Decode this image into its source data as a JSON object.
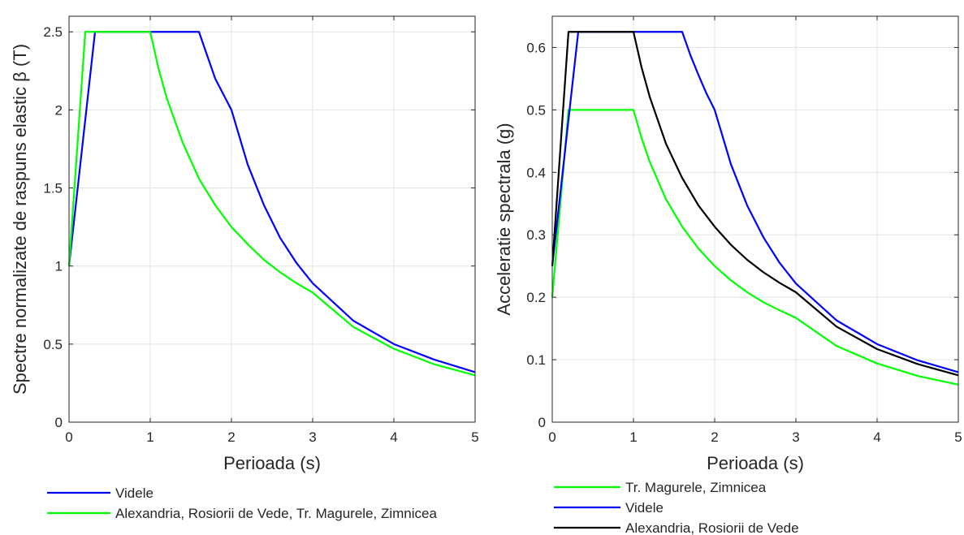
{
  "chart_data": [
    {
      "type": "line",
      "xlabel": "Perioada (s)",
      "ylabel": "Spectre normalizate de raspuns elastic β (T)",
      "xlim": [
        0,
        5
      ],
      "ylim": [
        0,
        2.6
      ],
      "xticks": [
        "0",
        "1",
        "2",
        "3",
        "4",
        "5"
      ],
      "yticks": [
        "0",
        "0.5",
        "1",
        "1.5",
        "2",
        "2.5"
      ],
      "grid": true,
      "legend_position": "below",
      "series": [
        {
          "name": "Videle",
          "color": "#0000ff",
          "x": [
            0,
            0.32,
            1.6,
            1.7,
            1.8,
            1.9,
            2.0,
            2.2,
            2.4,
            2.6,
            2.8,
            3.0,
            3.5,
            4.0,
            4.5,
            5.0
          ],
          "y": [
            1,
            2.5,
            2.5,
            2.35,
            2.2,
            2.1,
            2.0,
            1.65,
            1.39,
            1.18,
            1.02,
            0.89,
            0.65,
            0.5,
            0.4,
            0.32
          ]
        },
        {
          "name": "Alexandria, Rosiorii de Vede, Tr. Magurele, Zimnicea",
          "color": "#00ff00",
          "x": [
            0,
            0.2,
            1.0,
            1.1,
            1.2,
            1.4,
            1.6,
            1.8,
            2.0,
            2.2,
            2.4,
            2.6,
            2.8,
            3.0,
            3.5,
            4.0,
            4.5,
            5.0
          ],
          "y": [
            1,
            2.5,
            2.5,
            2.27,
            2.08,
            1.79,
            1.56,
            1.39,
            1.25,
            1.14,
            1.04,
            0.96,
            0.89,
            0.83,
            0.61,
            0.47,
            0.37,
            0.3
          ]
        }
      ]
    },
    {
      "type": "line",
      "xlabel": "Perioada (s)",
      "ylabel": "Acceleratie spectrala (g)",
      "xlim": [
        0,
        5
      ],
      "ylim": [
        0,
        0.65
      ],
      "xticks": [
        "0",
        "1",
        "2",
        "3",
        "4",
        "5"
      ],
      "yticks": [
        "0",
        "0.1",
        "0.2",
        "0.3",
        "0.4",
        "0.5",
        "0.6"
      ],
      "grid": true,
      "legend_position": "below",
      "series": [
        {
          "name": "Tr. Magurele, Zimnicea",
          "color": "#00ff00",
          "x": [
            0,
            0.2,
            1.0,
            1.1,
            1.2,
            1.4,
            1.6,
            1.8,
            2.0,
            2.2,
            2.4,
            2.6,
            2.8,
            3.0,
            3.5,
            4.0,
            4.5,
            5.0
          ],
          "y": [
            0.2,
            0.5,
            0.5,
            0.455,
            0.417,
            0.357,
            0.313,
            0.278,
            0.25,
            0.227,
            0.208,
            0.192,
            0.179,
            0.167,
            0.122,
            0.094,
            0.074,
            0.06
          ]
        },
        {
          "name": "Videle",
          "color": "#0000ff",
          "x": [
            0,
            0.32,
            1.6,
            1.7,
            1.8,
            1.9,
            2.0,
            2.2,
            2.4,
            2.6,
            2.8,
            3.0,
            3.5,
            4.0,
            4.5,
            5.0
          ],
          "y": [
            0.25,
            0.625,
            0.625,
            0.588,
            0.556,
            0.526,
            0.5,
            0.413,
            0.347,
            0.296,
            0.255,
            0.222,
            0.163,
            0.125,
            0.099,
            0.08
          ]
        },
        {
          "name": "Alexandria, Rosiorii de Vede",
          "color": "#000000",
          "x": [
            0,
            0.2,
            1.0,
            1.1,
            1.2,
            1.4,
            1.6,
            1.8,
            2.0,
            2.2,
            2.4,
            2.6,
            2.8,
            3.0,
            3.5,
            4.0,
            4.5,
            5.0
          ],
          "y": [
            0.25,
            0.625,
            0.625,
            0.568,
            0.521,
            0.446,
            0.391,
            0.347,
            0.313,
            0.284,
            0.26,
            0.24,
            0.223,
            0.208,
            0.153,
            0.117,
            0.093,
            0.075
          ]
        }
      ]
    }
  ]
}
